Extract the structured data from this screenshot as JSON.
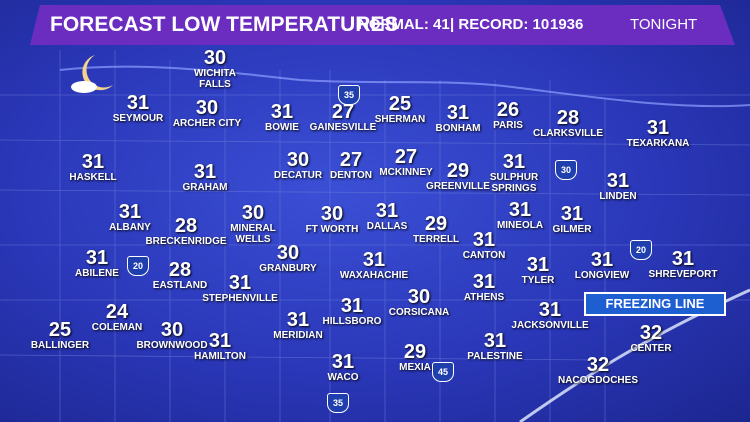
{
  "header": {
    "title": "FORECAST LOW TEMPERATURES",
    "normal": "NORMAL: 41",
    "record": "| RECORD: 10",
    "record_year": "1936",
    "period": "TONIGHT"
  },
  "cities": [
    {
      "temp": "30",
      "name": "WICHITA FALLS"
    },
    {
      "temp": "31",
      "name": "SEYMOUR"
    },
    {
      "temp": "30",
      "name": "ARCHER CITY"
    },
    {
      "temp": "31",
      "name": "BOWIE"
    },
    {
      "temp": "27",
      "name": "GAINESVILLE"
    },
    {
      "temp": "25",
      "name": "SHERMAN"
    },
    {
      "temp": "31",
      "name": "BONHAM"
    },
    {
      "temp": "26",
      "name": "PARIS"
    },
    {
      "temp": "28",
      "name": "CLARKSVILLE"
    },
    {
      "temp": "31",
      "name": "TEXARKANA"
    },
    {
      "temp": "31",
      "name": "HASKELL"
    },
    {
      "temp": "31",
      "name": "GRAHAM"
    },
    {
      "temp": "30",
      "name": "DECATUR"
    },
    {
      "temp": "27",
      "name": "DENTON"
    },
    {
      "temp": "27",
      "name": "MCKINNEY"
    },
    {
      "temp": "29",
      "name": "GREENVILLE"
    },
    {
      "temp": "31",
      "name": "SULPHUR SPRINGS"
    },
    {
      "temp": "31",
      "name": "LINDEN"
    },
    {
      "temp": "31",
      "name": "ALBANY"
    },
    {
      "temp": "28",
      "name": "BRECKENRIDGE"
    },
    {
      "temp": "30",
      "name": "MINERAL WELLS"
    },
    {
      "temp": "30",
      "name": "FT WORTH"
    },
    {
      "temp": "31",
      "name": "DALLAS"
    },
    {
      "temp": "29",
      "name": "TERRELL"
    },
    {
      "temp": "31",
      "name": "MINEOLA"
    },
    {
      "temp": "31",
      "name": "GILMER"
    },
    {
      "temp": "31",
      "name": "ABILENE"
    },
    {
      "temp": "28",
      "name": "EASTLAND"
    },
    {
      "temp": "30",
      "name": "GRANBURY"
    },
    {
      "temp": "31",
      "name": "WAXAHACHIE"
    },
    {
      "temp": "31",
      "name": "CANTON"
    },
    {
      "temp": "31",
      "name": "TYLER"
    },
    {
      "temp": "31",
      "name": "LONGVIEW"
    },
    {
      "temp": "31",
      "name": "SHREVEPORT"
    },
    {
      "temp": "31",
      "name": "STEPHENVILLE"
    },
    {
      "temp": "31",
      "name": "ATHENS"
    },
    {
      "temp": "24",
      "name": "COLEMAN"
    },
    {
      "temp": "30",
      "name": "BROWNWOOD"
    },
    {
      "temp": "25",
      "name": "BALLINGER"
    },
    {
      "temp": "31",
      "name": "MERIDIAN"
    },
    {
      "temp": "31",
      "name": "HILLSBORO"
    },
    {
      "temp": "30",
      "name": "CORSICANA"
    },
    {
      "temp": "31",
      "name": "JACKSONVILLE"
    },
    {
      "temp": "32",
      "name": "CENTER"
    },
    {
      "temp": "31",
      "name": "HAMILTON"
    },
    {
      "temp": "31",
      "name": "PALESTINE"
    },
    {
      "temp": "29",
      "name": "MEXIA"
    },
    {
      "temp": "31",
      "name": "WACO"
    },
    {
      "temp": "32",
      "name": "NACOGDOCHES"
    }
  ],
  "highways": [
    "35",
    "30",
    "20",
    "20",
    "45",
    "35"
  ],
  "freezing_line_label": "FREEZING LINE"
}
